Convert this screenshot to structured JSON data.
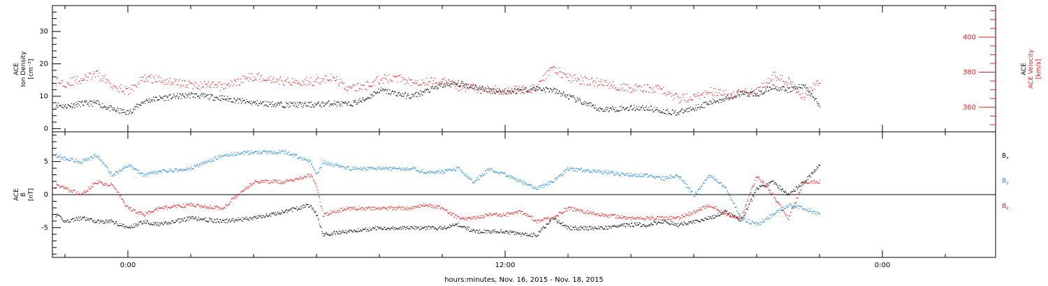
{
  "footer_label": "hours:minutes, Nov. 16, 2015 - Nov. 18, 2015",
  "colors": {
    "black": "#000000",
    "red": "#e8201e",
    "blue": "#1e88dc",
    "axis": "#000000"
  },
  "chart_data": [
    {
      "type": "scatter",
      "name_label": "ACE",
      "ylabel": "Ion Density",
      "yunit": "[cm⁻³]",
      "y2label": "ACE Velocity",
      "y2unit": "[km/s]",
      "x_ticks": [
        "0:00",
        "12:00",
        "0:00"
      ],
      "x_tick_hours": [
        0,
        12,
        24
      ],
      "x_range_hours": [
        -2.4,
        27.6
      ],
      "data_end_hour": 22.1,
      "ylim": [
        -1,
        38
      ],
      "yticks": [
        0,
        10,
        20,
        30
      ],
      "y2lim": [
        346,
        418
      ],
      "y2ticks": [
        360,
        380,
        400
      ],
      "series": [
        {
          "color": "#000000",
          "axis": "left",
          "t": [
            -2.3,
            -2,
            -1.5,
            -1,
            -0.5,
            0,
            0.5,
            1,
            2,
            3,
            4,
            5,
            6,
            6.5,
            7,
            7.5,
            8,
            8.5,
            9,
            10,
            10.5,
            11,
            11.5,
            12,
            12.5,
            13,
            13.5,
            14,
            15,
            16,
            16.5,
            17,
            17.5,
            18,
            18.5,
            19,
            19.5,
            20,
            20.5,
            21,
            21.5,
            22
          ],
          "v": [
            7.5,
            7,
            7.8,
            8,
            6,
            5,
            8.5,
            9.5,
            10.5,
            9.5,
            8,
            7.5,
            7.5,
            8,
            7.5,
            9,
            12,
            11,
            10,
            13.5,
            14,
            13,
            12,
            11.5,
            12,
            12.5,
            12,
            10,
            6,
            6.5,
            6.5,
            5.5,
            5,
            6.5,
            8,
            9.5,
            11,
            10.5,
            13,
            12,
            13.5,
            7
          ]
        },
        {
          "color": "#e8201e",
          "axis": "right",
          "t": [
            -2.3,
            -2,
            -1.5,
            -1,
            -0.5,
            0,
            0.5,
            1,
            2,
            3,
            4,
            5,
            6,
            6.5,
            7,
            7.5,
            8,
            8.5,
            9,
            10,
            10.5,
            11,
            11.5,
            12,
            12.5,
            13,
            13.5,
            14,
            15,
            16,
            16.5,
            17,
            17.5,
            18,
            18.5,
            19,
            19.5,
            20,
            20.5,
            21,
            21.5,
            22
          ],
          "v": [
            375,
            374,
            376,
            379,
            373,
            369,
            377,
            376,
            373,
            372,
            378,
            375,
            375,
            377,
            371,
            372,
            376,
            377,
            375,
            375,
            372,
            371,
            370,
            370,
            370,
            371,
            383,
            377,
            374,
            371,
            371,
            370,
            365,
            366,
            369,
            368,
            368,
            369,
            378,
            375,
            366,
            376
          ]
        }
      ]
    },
    {
      "type": "scatter",
      "name_label": "ACE",
      "ylabel": "B",
      "yunit": "[nT]",
      "x_ticks": [
        "0:00",
        "12:00",
        "0:00"
      ],
      "x_tick_hours": [
        0,
        12,
        24
      ],
      "x_range_hours": [
        -2.4,
        27.6
      ],
      "data_end_hour": 22.1,
      "ylim": [
        -9.5,
        9.5
      ],
      "yticks": [
        -5,
        0,
        5
      ],
      "zero_line": true,
      "legend": [
        "Bx",
        "By",
        "Bz"
      ],
      "legend_placement": "right",
      "series": [
        {
          "name": "Bx",
          "color": "#000000",
          "t": [
            -2.3,
            -2,
            -1.5,
            -1,
            -0.5,
            0,
            0.5,
            1,
            2,
            3,
            4,
            5,
            5.8,
            6,
            6.2,
            7,
            8,
            9,
            9.5,
            10,
            10.5,
            11,
            11.5,
            12,
            12.5,
            13,
            13.5,
            14,
            15,
            16,
            16.5,
            17,
            17.5,
            18,
            18.5,
            19,
            19.5,
            20,
            20.5,
            21,
            21.5,
            22
          ],
          "v": [
            -3,
            -4,
            -3.5,
            -4,
            -4,
            -5,
            -4,
            -4.5,
            -3.5,
            -4,
            -3.5,
            -2.5,
            -1.5,
            -3,
            -6,
            -5.5,
            -5,
            -5,
            -5,
            -5,
            -4.5,
            -5.5,
            -5.5,
            -5.5,
            -6,
            -6,
            -3.5,
            -5,
            -5,
            -4.5,
            -4.5,
            -4,
            -4.5,
            -4,
            -3.5,
            -2.5,
            -4,
            1,
            2,
            0,
            2,
            4.5
          ]
        },
        {
          "name": "By",
          "color": "#1e88dc",
          "t": [
            -2.3,
            -2,
            -1.5,
            -1,
            -0.5,
            0,
            0.5,
            1,
            2,
            3,
            4,
            5,
            5.8,
            6,
            6.2,
            7,
            8,
            9,
            9.5,
            10,
            10.5,
            11,
            11.5,
            12,
            12.5,
            13,
            13.5,
            14,
            15,
            16,
            16.5,
            17,
            17.5,
            18,
            18.5,
            19,
            19.5,
            20,
            20.5,
            21,
            21.5,
            22
          ],
          "v": [
            6,
            5.5,
            5,
            6,
            3,
            4.5,
            3,
            3.5,
            4,
            6,
            6.5,
            6.5,
            5,
            3,
            5,
            4,
            4,
            4,
            3.5,
            3.5,
            4,
            2,
            4,
            3,
            2,
            1,
            2,
            4,
            3.5,
            3,
            3,
            2.5,
            3,
            0,
            3,
            1,
            -3.5,
            -4.5,
            -3,
            -1.5,
            -2,
            -3
          ]
        },
        {
          "name": "Bz",
          "color": "#e8201e",
          "t": [
            -2.3,
            -2,
            -1.5,
            -1,
            -0.5,
            0,
            0.5,
            1,
            2,
            3,
            4,
            5,
            5.8,
            6,
            6.2,
            7,
            8,
            9,
            9.5,
            10,
            10.5,
            11,
            11.5,
            12,
            12.5,
            13,
            13.5,
            14,
            15,
            16,
            16.5,
            17,
            17.5,
            18,
            18.5,
            19,
            19.5,
            20,
            20.5,
            21,
            21.5,
            22
          ],
          "v": [
            1.5,
            1,
            0,
            2,
            1.5,
            -2,
            -3,
            -2,
            -1.5,
            -2,
            2,
            2,
            3,
            1,
            -3,
            -2,
            -2,
            -2,
            -1.5,
            -2,
            -3.5,
            -3.5,
            -3,
            -3,
            -2.5,
            -4,
            -3.5,
            -2,
            -3,
            -3.5,
            -3.5,
            -3.5,
            -3.5,
            -2.5,
            -1.5,
            -3,
            -3.5,
            3,
            0,
            -3.5,
            2,
            2
          ]
        }
      ]
    }
  ]
}
